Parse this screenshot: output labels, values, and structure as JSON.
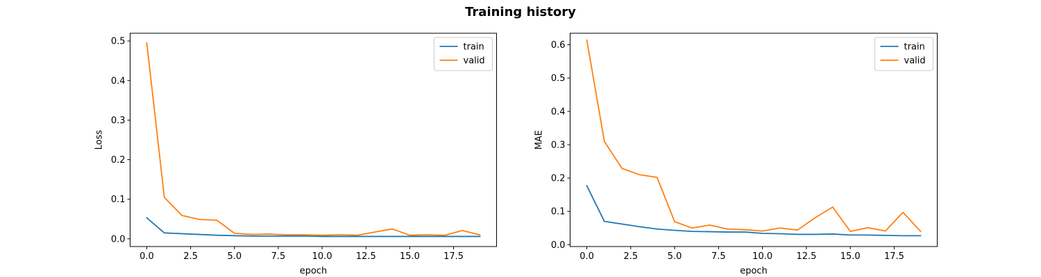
{
  "figure": {
    "title": "Training history"
  },
  "chart_data": [
    {
      "type": "line",
      "title": "",
      "xlabel": "epoch",
      "ylabel": "Loss",
      "xlim": [
        -0.95,
        19.95
      ],
      "ylim": [
        -0.0195,
        0.5195
      ],
      "xticks": [
        0,
        2.5,
        5,
        7.5,
        10,
        12.5,
        15,
        17.5
      ],
      "xtick_labels": [
        "0.0",
        "2.5",
        "5.0",
        "7.5",
        "10.0",
        "12.5",
        "15.0",
        "17.5"
      ],
      "yticks": [
        0,
        0.1,
        0.2,
        0.3,
        0.4,
        0.5
      ],
      "ytick_labels": [
        "0.0",
        "0.1",
        "0.2",
        "0.3",
        "0.4",
        "0.5"
      ],
      "grid": false,
      "legend": "upper right",
      "x": [
        0,
        1,
        2,
        3,
        4,
        5,
        6,
        7,
        8,
        9,
        10,
        11,
        12,
        13,
        14,
        15,
        16,
        17,
        18,
        19
      ],
      "series": [
        {
          "name": "train",
          "color": "#1f77b4",
          "values": [
            0.053,
            0.015,
            0.013,
            0.011,
            0.009,
            0.008,
            0.007,
            0.007,
            0.007,
            0.007,
            0.006,
            0.006,
            0.006,
            0.006,
            0.006,
            0.006,
            0.006,
            0.006,
            0.006,
            0.006
          ]
        },
        {
          "name": "valid",
          "color": "#ff7f0e",
          "values": [
            0.495,
            0.105,
            0.059,
            0.049,
            0.047,
            0.014,
            0.011,
            0.012,
            0.01,
            0.01,
            0.009,
            0.01,
            0.009,
            0.017,
            0.025,
            0.009,
            0.01,
            0.009,
            0.021,
            0.01
          ]
        }
      ]
    },
    {
      "type": "line",
      "title": "",
      "xlabel": "epoch",
      "ylabel": "MAE",
      "xlim": [
        -0.95,
        19.95
      ],
      "ylim": [
        -0.0055,
        0.6345
      ],
      "xticks": [
        0,
        2.5,
        5,
        7.5,
        10,
        12.5,
        15,
        17.5
      ],
      "xtick_labels": [
        "0.0",
        "2.5",
        "5.0",
        "7.5",
        "10.0",
        "12.5",
        "15.0",
        "17.5"
      ],
      "yticks": [
        0,
        0.1,
        0.2,
        0.3,
        0.4,
        0.5,
        0.6
      ],
      "ytick_labels": [
        "0.0",
        "0.1",
        "0.2",
        "0.3",
        "0.4",
        "0.5",
        "0.6"
      ],
      "grid": false,
      "legend": "upper right",
      "x": [
        0,
        1,
        2,
        3,
        4,
        5,
        6,
        7,
        8,
        9,
        10,
        11,
        12,
        13,
        14,
        15,
        16,
        17,
        18,
        19
      ],
      "series": [
        {
          "name": "train",
          "color": "#1f77b4",
          "values": [
            0.177,
            0.07,
            0.062,
            0.054,
            0.047,
            0.043,
            0.04,
            0.039,
            0.038,
            0.038,
            0.034,
            0.033,
            0.031,
            0.031,
            0.032,
            0.029,
            0.029,
            0.028,
            0.027,
            0.027
          ]
        },
        {
          "name": "valid",
          "color": "#ff7f0e",
          "values": [
            0.614,
            0.31,
            0.229,
            0.21,
            0.202,
            0.069,
            0.05,
            0.059,
            0.047,
            0.045,
            0.041,
            0.05,
            0.044,
            0.081,
            0.113,
            0.04,
            0.051,
            0.041,
            0.097,
            0.04
          ]
        }
      ]
    }
  ]
}
